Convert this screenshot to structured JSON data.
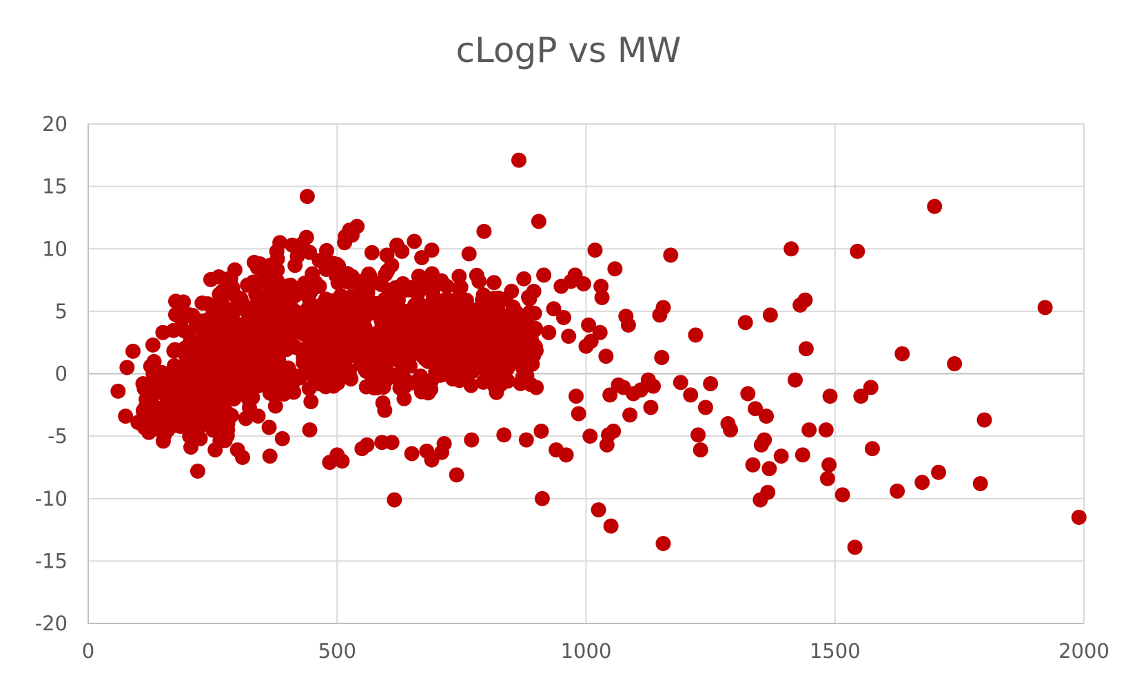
{
  "chart_data": {
    "type": "scatter",
    "title": "cLogP vs MW",
    "xlabel": "",
    "ylabel": "",
    "xlim": [
      0,
      2000
    ],
    "ylim": [
      -20,
      20
    ],
    "x_ticks": [
      0,
      500,
      1000,
      1500,
      2000
    ],
    "y_ticks": [
      -20,
      -15,
      -10,
      -5,
      0,
      5,
      10,
      15,
      20
    ],
    "x_tick_labels": [
      "0",
      "500",
      "1000",
      "1500",
      "2000"
    ],
    "y_tick_labels": [
      "-20",
      "-15",
      "-10",
      "-5",
      "0",
      "5",
      "10",
      "15",
      "20"
    ],
    "grid": true,
    "legend": "none",
    "marker_color": "#C00000",
    "series": [
      {
        "points": [
          [
            60,
            -1.4
          ],
          [
            78,
            0.5
          ],
          [
            90,
            1.8
          ],
          [
            75,
            -3.4
          ],
          [
            100,
            -3.9
          ],
          [
            110,
            -0.8
          ],
          [
            130,
            2.3
          ],
          [
            150,
            3.3
          ],
          [
            160,
            -4.5
          ],
          [
            175,
            -3.8
          ],
          [
            200,
            4.7
          ],
          [
            220,
            -7.8
          ],
          [
            225,
            -5.2
          ],
          [
            240,
            5.6
          ],
          [
            255,
            -6.1
          ],
          [
            265,
            6.0
          ],
          [
            280,
            -4.5
          ],
          [
            290,
            6.9
          ],
          [
            300,
            -6.1
          ],
          [
            310,
            -6.7
          ],
          [
            320,
            7.1
          ],
          [
            340,
            8.5
          ],
          [
            345,
            8.8
          ],
          [
            355,
            8.6
          ],
          [
            365,
            -6.6
          ],
          [
            380,
            9.2
          ],
          [
            385,
            10.5
          ],
          [
            390,
            -5.2
          ],
          [
            410,
            10.3
          ],
          [
            420,
            9.4
          ],
          [
            430,
            10.4
          ],
          [
            440,
            14.2
          ],
          [
            445,
            -4.5
          ],
          [
            450,
            8.0
          ],
          [
            485,
            -7.1
          ],
          [
            500,
            -6.5
          ],
          [
            510,
            -7.0
          ],
          [
            515,
            10.5
          ],
          [
            525,
            11.5
          ],
          [
            530,
            11.1
          ],
          [
            540,
            11.8
          ],
          [
            550,
            -6.0
          ],
          [
            560,
            -5.7
          ],
          [
            570,
            9.7
          ],
          [
            590,
            -5.5
          ],
          [
            600,
            9.5
          ],
          [
            610,
            -5.5
          ],
          [
            615,
            -10.1
          ],
          [
            620,
            10.3
          ],
          [
            630,
            9.8
          ],
          [
            650,
            -6.4
          ],
          [
            655,
            10.6
          ],
          [
            670,
            9.3
          ],
          [
            690,
            9.9
          ],
          [
            680,
            -6.2
          ],
          [
            690,
            -6.9
          ],
          [
            710,
            -6.3
          ],
          [
            715,
            -5.6
          ],
          [
            740,
            -8.1
          ],
          [
            745,
            7.8
          ],
          [
            765,
            9.6
          ],
          [
            770,
            -5.3
          ],
          [
            785,
            7.4
          ],
          [
            795,
            11.4
          ],
          [
            815,
            7.3
          ],
          [
            820,
            -1.5
          ],
          [
            835,
            -4.9
          ],
          [
            845,
            1.3
          ],
          [
            860,
            4.9
          ],
          [
            865,
            17.1
          ],
          [
            875,
            7.6
          ],
          [
            880,
            -5.3
          ],
          [
            895,
            6.6
          ],
          [
            900,
            -1.1
          ],
          [
            905,
            12.2
          ],
          [
            910,
            -4.6
          ],
          [
            912,
            -10.0
          ],
          [
            915,
            7.9
          ],
          [
            925,
            3.3
          ],
          [
            935,
            5.2
          ],
          [
            940,
            -6.1
          ],
          [
            950,
            7.0
          ],
          [
            955,
            4.5
          ],
          [
            960,
            -6.5
          ],
          [
            965,
            3.0
          ],
          [
            970,
            7.4
          ],
          [
            978,
            7.9
          ],
          [
            980,
            -1.8
          ],
          [
            985,
            -3.2
          ],
          [
            995,
            7.2
          ],
          [
            1000,
            2.2
          ],
          [
            1005,
            3.9
          ],
          [
            1008,
            -5.0
          ],
          [
            1010,
            2.6
          ],
          [
            1018,
            9.9
          ],
          [
            1025,
            -10.9
          ],
          [
            1028,
            3.3
          ],
          [
            1030,
            7.0
          ],
          [
            1032,
            6.1
          ],
          [
            1040,
            1.4
          ],
          [
            1042,
            -5.7
          ],
          [
            1045,
            -4.9
          ],
          [
            1048,
            -1.7
          ],
          [
            1050,
            -12.2
          ],
          [
            1055,
            -4.6
          ],
          [
            1058,
            8.4
          ],
          [
            1065,
            -0.9
          ],
          [
            1075,
            -1.1
          ],
          [
            1080,
            4.6
          ],
          [
            1085,
            3.9
          ],
          [
            1088,
            -3.3
          ],
          [
            1095,
            -1.6
          ],
          [
            1110,
            -1.3
          ],
          [
            1125,
            -0.5
          ],
          [
            1130,
            -2.7
          ],
          [
            1135,
            -1.0
          ],
          [
            1148,
            4.7
          ],
          [
            1152,
            1.3
          ],
          [
            1155,
            5.3
          ],
          [
            1155,
            -13.6
          ],
          [
            1170,
            9.5
          ],
          [
            1190,
            -0.7
          ],
          [
            1210,
            -1.7
          ],
          [
            1220,
            3.1
          ],
          [
            1225,
            -4.9
          ],
          [
            1230,
            -6.1
          ],
          [
            1240,
            -2.7
          ],
          [
            1250,
            -0.8
          ],
          [
            1285,
            -4.0
          ],
          [
            1290,
            -4.5
          ],
          [
            1320,
            4.1
          ],
          [
            1325,
            -1.6
          ],
          [
            1335,
            -7.3
          ],
          [
            1340,
            -2.8
          ],
          [
            1350,
            -10.1
          ],
          [
            1352,
            -5.7
          ],
          [
            1358,
            -5.3
          ],
          [
            1362,
            -3.4
          ],
          [
            1365,
            -9.5
          ],
          [
            1368,
            -7.6
          ],
          [
            1370,
            4.7
          ],
          [
            1392,
            -6.6
          ],
          [
            1412,
            10.0
          ],
          [
            1420,
            -0.5
          ],
          [
            1430,
            5.5
          ],
          [
            1435,
            -6.5
          ],
          [
            1440,
            5.9
          ],
          [
            1442,
            2.0
          ],
          [
            1448,
            -4.5
          ],
          [
            1482,
            -4.5
          ],
          [
            1485,
            -8.4
          ],
          [
            1488,
            -7.3
          ],
          [
            1490,
            -1.8
          ],
          [
            1515,
            -9.7
          ],
          [
            1540,
            -13.9
          ],
          [
            1545,
            9.8
          ],
          [
            1552,
            -1.8
          ],
          [
            1572,
            -1.1
          ],
          [
            1575,
            -6.0
          ],
          [
            1625,
            -9.4
          ],
          [
            1635,
            1.6
          ],
          [
            1675,
            -8.7
          ],
          [
            1700,
            13.4
          ],
          [
            1708,
            -7.9
          ],
          [
            1740,
            0.8
          ],
          [
            1792,
            -8.8
          ],
          [
            1800,
            -3.7
          ],
          [
            1922,
            5.3
          ],
          [
            1990,
            -11.5
          ]
        ]
      }
    ]
  }
}
